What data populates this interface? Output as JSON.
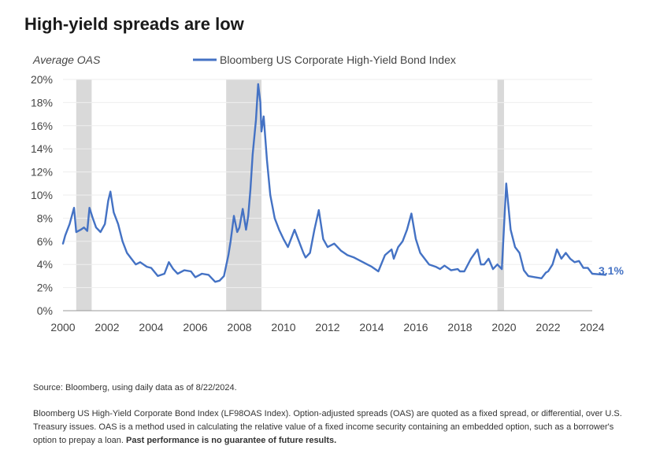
{
  "title": "High-yield spreads are low",
  "source": "Source: Bloomberg, using daily data as of 8/22/2024.",
  "footnote": {
    "text": "Bloomberg US High-Yield Corporate Bond Index (LF98OAS Index). Option-adjusted spreads (OAS) are quoted as a fixed spread, or differential, over U.S. Treasury issues. OAS is a method used in calculating the relative value of a fixed income security containing an embedded option, such as a borrower's option to prepay a loan.",
    "bold": "Past performance is no guarantee of future results."
  },
  "colors": {
    "line": "#4472c4",
    "shade": "#d9d9d9",
    "axis": "#999999"
  },
  "chart_data": {
    "type": "line",
    "title": "High-yield spreads are low",
    "ylabel": "Average OAS",
    "xlabel": "",
    "ylim": [
      0,
      20
    ],
    "xlim": [
      2000,
      2024
    ],
    "yticks": [
      "0%",
      "2%",
      "4%",
      "6%",
      "8%",
      "10%",
      "12%",
      "14%",
      "16%",
      "18%",
      "20%"
    ],
    "xticks": [
      "2000",
      "2002",
      "2004",
      "2006",
      "2008",
      "2010",
      "2012",
      "2014",
      "2016",
      "2018",
      "2020",
      "2022",
      "2024"
    ],
    "grid": true,
    "legend": "top",
    "shaded_periods": [
      [
        2000.6,
        2001.3
      ],
      [
        2007.4,
        2009.0
      ],
      [
        2019.7,
        2020.0
      ]
    ],
    "end_label": "3.1%",
    "series": [
      {
        "name": "Bloomberg US Corporate High-Yield Bond Index",
        "x": [
          2000.0,
          2000.1,
          2000.3,
          2000.5,
          2000.6,
          2000.8,
          2000.95,
          2001.1,
          2001.2,
          2001.35,
          2001.5,
          2001.7,
          2001.9,
          2002.05,
          2002.15,
          2002.3,
          2002.5,
          2002.7,
          2002.9,
          2003.1,
          2003.3,
          2003.5,
          2003.8,
          2004.0,
          2004.3,
          2004.6,
          2004.8,
          2005.0,
          2005.2,
          2005.5,
          2005.8,
          2006.0,
          2006.3,
          2006.6,
          2006.9,
          2007.1,
          2007.3,
          2007.5,
          2007.6,
          2007.75,
          2007.9,
          2008.0,
          2008.15,
          2008.3,
          2008.4,
          2008.5,
          2008.6,
          2008.75,
          2008.85,
          2008.95,
          2009.0,
          2009.1,
          2009.25,
          2009.4,
          2009.6,
          2009.8,
          2010.0,
          2010.2,
          2010.4,
          2010.5,
          2010.7,
          2010.9,
          2011.0,
          2011.2,
          2011.4,
          2011.6,
          2011.8,
          2012.0,
          2012.3,
          2012.6,
          2012.9,
          2013.2,
          2013.5,
          2013.8,
          2014.0,
          2014.3,
          2014.6,
          2014.9,
          2015.0,
          2015.2,
          2015.4,
          2015.6,
          2015.8,
          2016.0,
          2016.2,
          2016.4,
          2016.6,
          2016.9,
          2017.1,
          2017.3,
          2017.6,
          2017.9,
          2018.0,
          2018.2,
          2018.5,
          2018.8,
          2018.95,
          2019.1,
          2019.3,
          2019.5,
          2019.7,
          2019.75,
          2019.9,
          2020.1,
          2020.3,
          2020.5,
          2020.7,
          2020.9,
          2021.1,
          2021.4,
          2021.7,
          2021.9,
          2022.0,
          2022.2,
          2022.4,
          2022.6,
          2022.8,
          2023.0,
          2023.2,
          2023.4,
          2023.6,
          2023.8,
          2024.0,
          2024.6
        ],
        "values": [
          5.8,
          6.5,
          7.5,
          8.9,
          6.8,
          7.0,
          7.2,
          6.9,
          8.9,
          8.0,
          7.2,
          6.8,
          7.5,
          9.5,
          10.3,
          8.5,
          7.5,
          6.0,
          5.0,
          4.5,
          4.0,
          4.2,
          3.8,
          3.7,
          3.0,
          3.2,
          4.2,
          3.6,
          3.2,
          3.5,
          3.4,
          2.9,
          3.2,
          3.1,
          2.5,
          2.6,
          3.0,
          4.8,
          6.0,
          8.2,
          6.8,
          7.2,
          8.8,
          7.0,
          8.2,
          10.5,
          13.5,
          16.5,
          19.6,
          18.0,
          15.5,
          16.8,
          13.0,
          10.0,
          8.0,
          7.0,
          6.2,
          5.5,
          6.5,
          7.0,
          6.0,
          5.0,
          4.6,
          5.0,
          7.0,
          8.7,
          6.2,
          5.5,
          5.8,
          5.2,
          4.8,
          4.6,
          4.3,
          4.0,
          3.8,
          3.4,
          4.8,
          5.3,
          4.5,
          5.5,
          6.0,
          7.0,
          8.4,
          6.2,
          5.0,
          4.5,
          4.0,
          3.8,
          3.6,
          3.9,
          3.5,
          3.6,
          3.4,
          3.4,
          4.5,
          5.3,
          4.0,
          4.0,
          4.5,
          3.6,
          4.0,
          3.9,
          3.6,
          11.0,
          7.0,
          5.5,
          5.0,
          3.5,
          3.0,
          2.9,
          2.8,
          3.3,
          3.4,
          4.0,
          5.3,
          4.5,
          5.0,
          4.5,
          4.2,
          4.3,
          3.7,
          3.7,
          3.2,
          3.1
        ]
      }
    ]
  }
}
